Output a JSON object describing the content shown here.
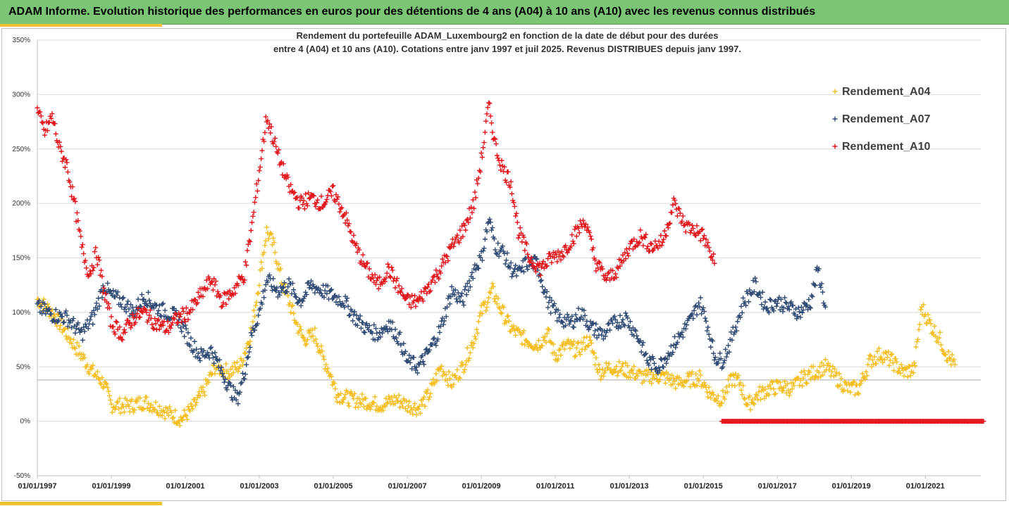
{
  "header": {
    "title": "ADAM Informe. Evolution historique des performances en euros pour des détentions de 4 ans (A04) à 10 ans (A10) avec les revenus connus distribués"
  },
  "colors": {
    "banner": "#7cc576",
    "accent": "#f2c12e",
    "A04": "#f5be1e",
    "A07": "#2e4a75",
    "A10": "#e3141b"
  },
  "chart_data": {
    "type": "scatter",
    "title_lines": [
      "Rendement du portefeuille ADAM_Luxembourg2  en fonction de la date de début pour des durées",
      "entre 4 (A04) et 10 ans (A10). Cotations entre janv 1997 et juil 2025. Revenus DISTRIBUES depuis janv 1997."
    ],
    "y_ticks": [
      "350%",
      "300%",
      "250%",
      "200%",
      "150%",
      "100%",
      "50%",
      "0%",
      "-50%"
    ],
    "ylim": [
      -50,
      350
    ],
    "x_ticks": [
      "01/01/1997",
      "01/01/1999",
      "01/01/2001",
      "01/01/2003",
      "01/01/2005",
      "01/01/2007",
      "01/01/2009",
      "01/01/2011",
      "01/01/2013",
      "01/01/2015",
      "01/01/2017",
      "01/01/2019",
      "01/01/2021"
    ],
    "xlim": [
      "01/01/1997",
      "01/07/2022"
    ],
    "grid": "horizontal",
    "reference_line": 38,
    "legend_position": "top-right",
    "series": [
      {
        "name": "Rendement_A04",
        "color": "#f5be1e",
        "points": [
          [
            1997.0,
            112
          ],
          [
            1997.4,
            100
          ],
          [
            1997.8,
            80
          ],
          [
            1998.2,
            60
          ],
          [
            1998.5,
            45
          ],
          [
            1998.8,
            35
          ],
          [
            1999.0,
            15
          ],
          [
            1999.5,
            14
          ],
          [
            1999.9,
            18
          ],
          [
            2000.3,
            12
          ],
          [
            2000.7,
            5
          ],
          [
            2000.9,
            2
          ],
          [
            2001.2,
            12
          ],
          [
            2001.5,
            28
          ],
          [
            2001.8,
            50
          ],
          [
            2002.2,
            45
          ],
          [
            2002.5,
            52
          ],
          [
            2002.8,
            85
          ],
          [
            2003.0,
            130
          ],
          [
            2003.2,
            175
          ],
          [
            2003.4,
            160
          ],
          [
            2003.6,
            130
          ],
          [
            2003.8,
            110
          ],
          [
            2004.0,
            90
          ],
          [
            2004.2,
            75
          ],
          [
            2004.5,
            80
          ],
          [
            2004.7,
            60
          ],
          [
            2004.9,
            45
          ],
          [
            2005.1,
            25
          ],
          [
            2005.5,
            20
          ],
          [
            2005.9,
            18
          ],
          [
            2006.3,
            15
          ],
          [
            2006.7,
            20
          ],
          [
            2007.0,
            15
          ],
          [
            2007.3,
            12
          ],
          [
            2007.6,
            25
          ],
          [
            2007.9,
            50
          ],
          [
            2008.2,
            35
          ],
          [
            2008.5,
            50
          ],
          [
            2008.8,
            75
          ],
          [
            2009.0,
            100
          ],
          [
            2009.3,
            120
          ],
          [
            2009.5,
            105
          ],
          [
            2009.8,
            85
          ],
          [
            2010.2,
            75
          ],
          [
            2010.5,
            70
          ],
          [
            2010.8,
            80
          ],
          [
            2011.0,
            60
          ],
          [
            2011.3,
            70
          ],
          [
            2011.6,
            65
          ],
          [
            2011.9,
            75
          ],
          [
            2012.2,
            45
          ],
          [
            2012.5,
            50
          ],
          [
            2012.8,
            48
          ],
          [
            2013.1,
            45
          ],
          [
            2013.4,
            40
          ],
          [
            2013.7,
            42
          ],
          [
            2014.0,
            40
          ],
          [
            2014.3,
            35
          ],
          [
            2014.6,
            38
          ],
          [
            2014.9,
            40
          ],
          [
            2015.2,
            25
          ],
          [
            2015.5,
            20
          ],
          [
            2015.8,
            40
          ],
          [
            2016.0,
            35
          ],
          [
            2016.2,
            15
          ],
          [
            2016.5,
            25
          ],
          [
            2016.8,
            30
          ],
          [
            2017.1,
            32
          ],
          [
            2017.4,
            30
          ],
          [
            2017.7,
            40
          ],
          [
            2018.0,
            45
          ],
          [
            2018.3,
            50
          ],
          [
            2018.6,
            40
          ],
          [
            2018.9,
            30
          ],
          [
            2019.2,
            30
          ],
          [
            2019.5,
            55
          ],
          [
            2019.8,
            62
          ],
          [
            2020.1,
            55
          ],
          [
            2020.4,
            45
          ],
          [
            2020.7,
            48
          ],
          [
            2020.9,
            105
          ],
          [
            2021.2,
            85
          ],
          [
            2021.4,
            75
          ],
          [
            2021.6,
            60
          ],
          [
            2021.8,
            52
          ]
        ]
      },
      {
        "name": "Rendement_A07",
        "color": "#2e4a75",
        "points": [
          [
            1997.0,
            105
          ],
          [
            1997.4,
            98
          ],
          [
            1997.8,
            95
          ],
          [
            1998.2,
            80
          ],
          [
            1998.5,
            95
          ],
          [
            1998.8,
            125
          ],
          [
            1999.0,
            115
          ],
          [
            1999.3,
            110
          ],
          [
            1999.6,
            100
          ],
          [
            1999.9,
            115
          ],
          [
            2000.2,
            105
          ],
          [
            2000.5,
            100
          ],
          [
            2000.8,
            95
          ],
          [
            2001.1,
            75
          ],
          [
            2001.4,
            60
          ],
          [
            2001.7,
            65
          ],
          [
            2002.0,
            45
          ],
          [
            2002.2,
            30
          ],
          [
            2002.4,
            20
          ],
          [
            2002.6,
            45
          ],
          [
            2002.8,
            80
          ],
          [
            2003.0,
            100
          ],
          [
            2003.2,
            130
          ],
          [
            2003.5,
            120
          ],
          [
            2003.8,
            125
          ],
          [
            2004.1,
            110
          ],
          [
            2004.4,
            125
          ],
          [
            2004.7,
            120
          ],
          [
            2005.0,
            115
          ],
          [
            2005.3,
            110
          ],
          [
            2005.6,
            95
          ],
          [
            2005.9,
            85
          ],
          [
            2006.2,
            80
          ],
          [
            2006.5,
            90
          ],
          [
            2006.8,
            75
          ],
          [
            2007.0,
            55
          ],
          [
            2007.3,
            50
          ],
          [
            2007.6,
            65
          ],
          [
            2007.9,
            85
          ],
          [
            2008.2,
            120
          ],
          [
            2008.5,
            110
          ],
          [
            2008.8,
            140
          ],
          [
            2009.0,
            150
          ],
          [
            2009.2,
            185
          ],
          [
            2009.4,
            160
          ],
          [
            2009.6,
            155
          ],
          [
            2009.8,
            140
          ],
          [
            2010.0,
            135
          ],
          [
            2010.2,
            145
          ],
          [
            2010.5,
            145
          ],
          [
            2010.8,
            110
          ],
          [
            2011.1,
            95
          ],
          [
            2011.4,
            90
          ],
          [
            2011.7,
            100
          ],
          [
            2012.0,
            85
          ],
          [
            2012.3,
            80
          ],
          [
            2012.6,
            90
          ],
          [
            2012.9,
            95
          ],
          [
            2013.2,
            80
          ],
          [
            2013.5,
            55
          ],
          [
            2013.8,
            50
          ],
          [
            2014.1,
            65
          ],
          [
            2014.4,
            80
          ],
          [
            2014.7,
            95
          ],
          [
            2014.9,
            110
          ],
          [
            2015.1,
            90
          ],
          [
            2015.3,
            60
          ],
          [
            2015.5,
            55
          ],
          [
            2015.7,
            70
          ],
          [
            2015.9,
            90
          ],
          [
            2016.1,
            110
          ],
          [
            2016.4,
            125
          ],
          [
            2016.7,
            105
          ],
          [
            2017.0,
            110
          ],
          [
            2017.3,
            105
          ],
          [
            2017.6,
            100
          ],
          [
            2017.9,
            110
          ],
          [
            2018.1,
            140
          ],
          [
            2018.3,
            105
          ]
        ]
      },
      {
        "name": "Rendement_A10",
        "color": "#e3141b",
        "points": [
          [
            1997.0,
            285
          ],
          [
            1997.2,
            265
          ],
          [
            1997.4,
            280
          ],
          [
            1997.6,
            250
          ],
          [
            1997.8,
            235
          ],
          [
            1998.0,
            200
          ],
          [
            1998.2,
            160
          ],
          [
            1998.4,
            135
          ],
          [
            1998.6,
            155
          ],
          [
            1998.8,
            120
          ],
          [
            1999.0,
            90
          ],
          [
            1999.3,
            80
          ],
          [
            1999.6,
            95
          ],
          [
            1999.9,
            100
          ],
          [
            2000.2,
            90
          ],
          [
            2000.5,
            85
          ],
          [
            2000.8,
            95
          ],
          [
            2001.1,
            100
          ],
          [
            2001.4,
            115
          ],
          [
            2001.7,
            130
          ],
          [
            2002.0,
            110
          ],
          [
            2002.3,
            120
          ],
          [
            2002.6,
            135
          ],
          [
            2002.8,
            180
          ],
          [
            2003.0,
            230
          ],
          [
            2003.2,
            280
          ],
          [
            2003.5,
            245
          ],
          [
            2003.8,
            215
          ],
          [
            2004.1,
            200
          ],
          [
            2004.4,
            205
          ],
          [
            2004.7,
            200
          ],
          [
            2005.0,
            210
          ],
          [
            2005.3,
            190
          ],
          [
            2005.6,
            160
          ],
          [
            2005.9,
            140
          ],
          [
            2006.2,
            125
          ],
          [
            2006.5,
            140
          ],
          [
            2006.8,
            120
          ],
          [
            2007.0,
            110
          ],
          [
            2007.3,
            110
          ],
          [
            2007.6,
            125
          ],
          [
            2007.9,
            140
          ],
          [
            2008.2,
            160
          ],
          [
            2008.5,
            175
          ],
          [
            2008.8,
            200
          ],
          [
            2009.0,
            240
          ],
          [
            2009.2,
            290
          ],
          [
            2009.4,
            250
          ],
          [
            2009.6,
            230
          ],
          [
            2009.8,
            220
          ],
          [
            2010.0,
            175
          ],
          [
            2010.3,
            150
          ],
          [
            2010.6,
            140
          ],
          [
            2010.9,
            150
          ],
          [
            2011.2,
            155
          ],
          [
            2011.5,
            170
          ],
          [
            2011.8,
            185
          ],
          [
            2012.1,
            145
          ],
          [
            2012.4,
            130
          ],
          [
            2012.7,
            140
          ],
          [
            2013.0,
            160
          ],
          [
            2013.3,
            170
          ],
          [
            2013.6,
            160
          ],
          [
            2013.9,
            165
          ],
          [
            2014.2,
            200
          ],
          [
            2014.5,
            180
          ],
          [
            2014.8,
            175
          ],
          [
            2015.0,
            170
          ],
          [
            2015.3,
            145
          ]
        ]
      }
    ],
    "zero_marks": {
      "series": "Rendement_A10",
      "value": 0,
      "x_start": 2015.5,
      "x_end": 2022.6
    }
  }
}
